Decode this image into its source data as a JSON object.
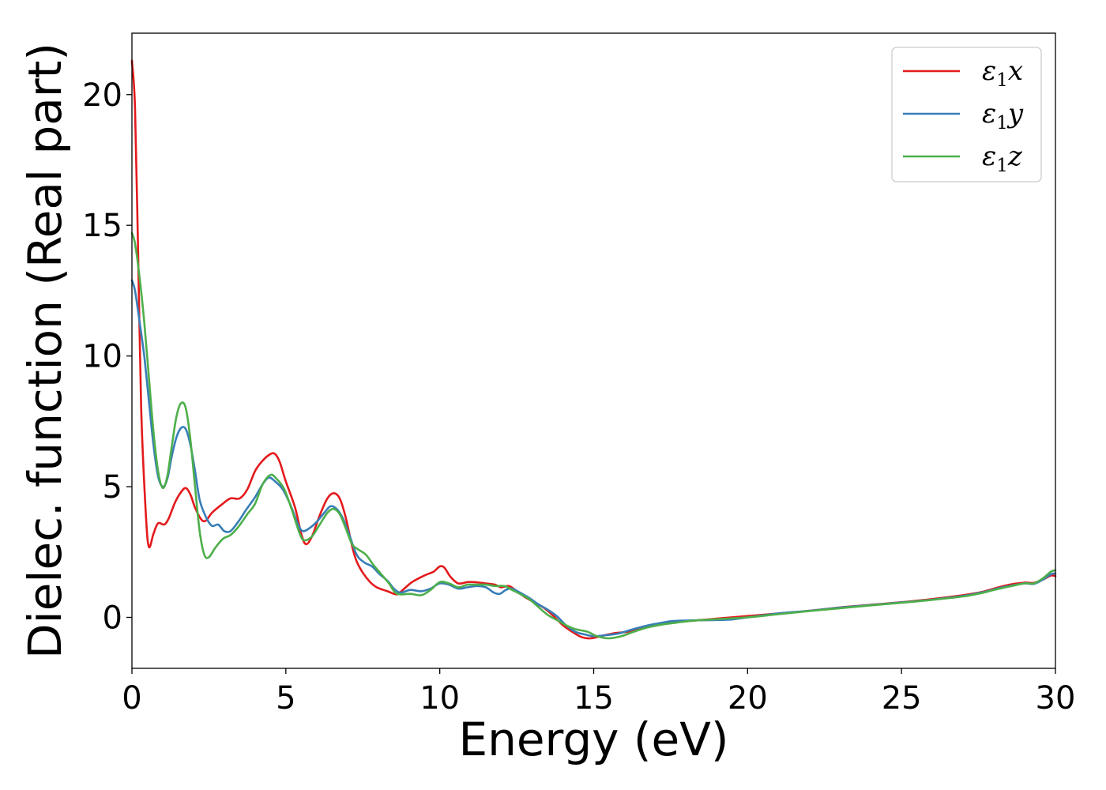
{
  "chart_data": {
    "type": "line",
    "title": "",
    "xlabel": "Energy (eV)",
    "ylabel": "Dielec. function (Real part)",
    "xlim": [
      0,
      30
    ],
    "ylim": [
      -1.95,
      22.35
    ],
    "xticks": [
      0,
      5,
      10,
      15,
      20,
      25,
      30
    ],
    "yticks": [
      0,
      5,
      10,
      15,
      20
    ],
    "xtick_labels": [
      "0",
      "5",
      "10",
      "15",
      "20",
      "25",
      "30"
    ],
    "ytick_labels": [
      "0",
      "5",
      "10",
      "15",
      "20"
    ],
    "grid": false,
    "legend_position": "top-right",
    "series": [
      {
        "name": "ε1x",
        "legend_label": {
          "sym": "ε",
          "sub": "1",
          "axis": "x"
        },
        "color": "#e41a1c",
        "points": [
          [
            0,
            21.3
          ],
          [
            0.1,
            19.5
          ],
          [
            0.2,
            14.0
          ],
          [
            0.3,
            8.0
          ],
          [
            0.45,
            4.0
          ],
          [
            0.55,
            2.7
          ],
          [
            0.7,
            3.2
          ],
          [
            0.85,
            3.6
          ],
          [
            1.05,
            3.55
          ],
          [
            1.2,
            3.8
          ],
          [
            1.4,
            4.4
          ],
          [
            1.6,
            4.8
          ],
          [
            1.75,
            4.95
          ],
          [
            1.9,
            4.7
          ],
          [
            2.05,
            4.2
          ],
          [
            2.25,
            3.75
          ],
          [
            2.4,
            3.7
          ],
          [
            2.6,
            4.0
          ],
          [
            2.9,
            4.3
          ],
          [
            3.2,
            4.55
          ],
          [
            3.5,
            4.55
          ],
          [
            3.75,
            4.9
          ],
          [
            4.0,
            5.6
          ],
          [
            4.25,
            6.0
          ],
          [
            4.5,
            6.25
          ],
          [
            4.65,
            6.25
          ],
          [
            4.8,
            5.95
          ],
          [
            5.0,
            5.2
          ],
          [
            5.3,
            4.2
          ],
          [
            5.5,
            3.2
          ],
          [
            5.65,
            2.8
          ],
          [
            5.85,
            3.1
          ],
          [
            6.1,
            3.9
          ],
          [
            6.35,
            4.55
          ],
          [
            6.55,
            4.75
          ],
          [
            6.75,
            4.55
          ],
          [
            6.95,
            3.8
          ],
          [
            7.2,
            2.5
          ],
          [
            7.4,
            1.9
          ],
          [
            7.7,
            1.4
          ],
          [
            7.95,
            1.15
          ],
          [
            8.3,
            1.0
          ],
          [
            8.6,
            0.88
          ],
          [
            8.8,
            1.05
          ],
          [
            9.1,
            1.35
          ],
          [
            9.5,
            1.6
          ],
          [
            9.8,
            1.75
          ],
          [
            10.0,
            1.95
          ],
          [
            10.15,
            1.9
          ],
          [
            10.35,
            1.55
          ],
          [
            10.6,
            1.3
          ],
          [
            10.9,
            1.35
          ],
          [
            11.1,
            1.35
          ],
          [
            11.5,
            1.3
          ],
          [
            11.8,
            1.25
          ],
          [
            12.0,
            1.15
          ],
          [
            12.25,
            1.2
          ],
          [
            12.5,
            1.0
          ],
          [
            12.8,
            0.75
          ],
          [
            13.1,
            0.55
          ],
          [
            13.4,
            0.35
          ],
          [
            13.7,
            0.05
          ],
          [
            14.0,
            -0.3
          ],
          [
            14.3,
            -0.55
          ],
          [
            14.6,
            -0.75
          ],
          [
            14.9,
            -0.8
          ],
          [
            15.3,
            -0.7
          ],
          [
            15.7,
            -0.6
          ],
          [
            16.1,
            -0.55
          ],
          [
            16.5,
            -0.42
          ],
          [
            17.0,
            -0.3
          ],
          [
            17.5,
            -0.2
          ],
          [
            18.0,
            -0.15
          ],
          [
            19.0,
            -0.05
          ],
          [
            20.0,
            0.05
          ],
          [
            21.0,
            0.15
          ],
          [
            22.0,
            0.25
          ],
          [
            23.0,
            0.38
          ],
          [
            24.0,
            0.48
          ],
          [
            25.0,
            0.58
          ],
          [
            26.0,
            0.7
          ],
          [
            27.0,
            0.85
          ],
          [
            27.6,
            0.97
          ],
          [
            28.0,
            1.1
          ],
          [
            28.5,
            1.25
          ],
          [
            29.0,
            1.33
          ],
          [
            29.3,
            1.32
          ],
          [
            29.6,
            1.45
          ],
          [
            29.85,
            1.6
          ],
          [
            30.0,
            1.58
          ]
        ]
      },
      {
        "name": "ε1y",
        "legend_label": {
          "sym": "ε",
          "sub": "1",
          "axis": "y"
        },
        "color": "#377eb8",
        "points": [
          [
            0,
            12.9
          ],
          [
            0.1,
            12.5
          ],
          [
            0.25,
            11.3
          ],
          [
            0.4,
            10.0
          ],
          [
            0.55,
            8.3
          ],
          [
            0.7,
            6.6
          ],
          [
            0.85,
            5.4
          ],
          [
            1.0,
            5.0
          ],
          [
            1.15,
            5.3
          ],
          [
            1.3,
            6.2
          ],
          [
            1.45,
            6.9
          ],
          [
            1.6,
            7.25
          ],
          [
            1.75,
            7.2
          ],
          [
            1.9,
            6.6
          ],
          [
            2.05,
            5.6
          ],
          [
            2.2,
            4.5
          ],
          [
            2.4,
            3.85
          ],
          [
            2.6,
            3.5
          ],
          [
            2.8,
            3.55
          ],
          [
            3.0,
            3.3
          ],
          [
            3.2,
            3.3
          ],
          [
            3.45,
            3.65
          ],
          [
            3.7,
            4.1
          ],
          [
            4.0,
            4.6
          ],
          [
            4.25,
            5.1
          ],
          [
            4.45,
            5.35
          ],
          [
            4.65,
            5.2
          ],
          [
            4.9,
            4.9
          ],
          [
            5.15,
            4.3
          ],
          [
            5.4,
            3.55
          ],
          [
            5.55,
            3.3
          ],
          [
            5.75,
            3.4
          ],
          [
            6.0,
            3.65
          ],
          [
            6.25,
            4.0
          ],
          [
            6.45,
            4.25
          ],
          [
            6.65,
            4.15
          ],
          [
            6.85,
            3.8
          ],
          [
            7.05,
            3.2
          ],
          [
            7.3,
            2.4
          ],
          [
            7.55,
            2.1
          ],
          [
            7.8,
            1.95
          ],
          [
            8.05,
            1.65
          ],
          [
            8.3,
            1.4
          ],
          [
            8.55,
            1.05
          ],
          [
            8.75,
            0.95
          ],
          [
            9.05,
            1.05
          ],
          [
            9.4,
            1.0
          ],
          [
            9.7,
            1.1
          ],
          [
            10.0,
            1.3
          ],
          [
            10.3,
            1.25
          ],
          [
            10.6,
            1.1
          ],
          [
            10.9,
            1.15
          ],
          [
            11.2,
            1.2
          ],
          [
            11.5,
            1.15
          ],
          [
            11.75,
            0.95
          ],
          [
            11.95,
            0.9
          ],
          [
            12.15,
            1.05
          ],
          [
            12.35,
            1.1
          ],
          [
            12.6,
            0.95
          ],
          [
            12.9,
            0.75
          ],
          [
            13.2,
            0.5
          ],
          [
            13.5,
            0.3
          ],
          [
            13.8,
            0.05
          ],
          [
            14.1,
            -0.3
          ],
          [
            14.4,
            -0.55
          ],
          [
            14.7,
            -0.65
          ],
          [
            15.0,
            -0.72
          ],
          [
            15.4,
            -0.68
          ],
          [
            15.8,
            -0.62
          ],
          [
            16.2,
            -0.48
          ],
          [
            16.6,
            -0.35
          ],
          [
            17.0,
            -0.25
          ],
          [
            17.5,
            -0.15
          ],
          [
            18.0,
            -0.12
          ],
          [
            19.0,
            -0.1
          ],
          [
            19.5,
            -0.08
          ],
          [
            20.0,
            0.0
          ],
          [
            21.0,
            0.15
          ],
          [
            22.0,
            0.25
          ],
          [
            23.0,
            0.37
          ],
          [
            24.0,
            0.47
          ],
          [
            25.0,
            0.57
          ],
          [
            26.0,
            0.68
          ],
          [
            27.0,
            0.82
          ],
          [
            27.6,
            0.95
          ],
          [
            28.0,
            1.07
          ],
          [
            28.5,
            1.2
          ],
          [
            29.0,
            1.3
          ],
          [
            29.3,
            1.28
          ],
          [
            29.6,
            1.45
          ],
          [
            29.85,
            1.65
          ],
          [
            30.0,
            1.68
          ]
        ]
      },
      {
        "name": "ε1z",
        "legend_label": {
          "sym": "ε",
          "sub": "1",
          "axis": "z"
        },
        "color": "#4daf4a",
        "points": [
          [
            0,
            14.7
          ],
          [
            0.1,
            14.3
          ],
          [
            0.25,
            13.0
          ],
          [
            0.4,
            11.3
          ],
          [
            0.55,
            9.2
          ],
          [
            0.7,
            7.1
          ],
          [
            0.85,
            5.6
          ],
          [
            1.0,
            4.95
          ],
          [
            1.15,
            5.4
          ],
          [
            1.3,
            6.6
          ],
          [
            1.45,
            7.7
          ],
          [
            1.6,
            8.2
          ],
          [
            1.75,
            8.0
          ],
          [
            1.9,
            6.8
          ],
          [
            2.05,
            5.0
          ],
          [
            2.2,
            3.3
          ],
          [
            2.35,
            2.4
          ],
          [
            2.5,
            2.3
          ],
          [
            2.7,
            2.65
          ],
          [
            2.95,
            3.0
          ],
          [
            3.2,
            3.15
          ],
          [
            3.45,
            3.45
          ],
          [
            3.75,
            3.95
          ],
          [
            4.0,
            4.35
          ],
          [
            4.25,
            5.1
          ],
          [
            4.5,
            5.45
          ],
          [
            4.7,
            5.3
          ],
          [
            4.95,
            4.9
          ],
          [
            5.2,
            4.1
          ],
          [
            5.45,
            3.2
          ],
          [
            5.6,
            2.95
          ],
          [
            5.85,
            3.1
          ],
          [
            6.1,
            3.55
          ],
          [
            6.35,
            4.0
          ],
          [
            6.55,
            4.15
          ],
          [
            6.75,
            3.95
          ],
          [
            6.95,
            3.4
          ],
          [
            7.15,
            2.8
          ],
          [
            7.35,
            2.6
          ],
          [
            7.6,
            2.4
          ],
          [
            7.85,
            2.0
          ],
          [
            8.1,
            1.65
          ],
          [
            8.35,
            1.3
          ],
          [
            8.55,
            0.95
          ],
          [
            8.75,
            0.88
          ],
          [
            9.05,
            0.9
          ],
          [
            9.4,
            0.85
          ],
          [
            9.7,
            1.05
          ],
          [
            10.0,
            1.35
          ],
          [
            10.3,
            1.3
          ],
          [
            10.6,
            1.15
          ],
          [
            10.9,
            1.25
          ],
          [
            11.2,
            1.25
          ],
          [
            11.5,
            1.25
          ],
          [
            11.8,
            1.2
          ],
          [
            12.1,
            1.2
          ],
          [
            12.35,
            1.05
          ],
          [
            12.6,
            0.9
          ],
          [
            12.9,
            0.7
          ],
          [
            13.2,
            0.4
          ],
          [
            13.5,
            0.1
          ],
          [
            13.8,
            -0.1
          ],
          [
            14.1,
            -0.3
          ],
          [
            14.4,
            -0.45
          ],
          [
            14.8,
            -0.55
          ],
          [
            15.1,
            -0.72
          ],
          [
            15.5,
            -0.8
          ],
          [
            15.9,
            -0.72
          ],
          [
            16.3,
            -0.55
          ],
          [
            16.7,
            -0.4
          ],
          [
            17.2,
            -0.28
          ],
          [
            17.7,
            -0.2
          ],
          [
            18.2,
            -0.13
          ],
          [
            19.0,
            -0.07
          ],
          [
            20.0,
            0.0
          ],
          [
            21.0,
            0.12
          ],
          [
            22.0,
            0.24
          ],
          [
            23.0,
            0.35
          ],
          [
            24.0,
            0.46
          ],
          [
            25.0,
            0.56
          ],
          [
            26.0,
            0.67
          ],
          [
            27.0,
            0.8
          ],
          [
            27.6,
            0.93
          ],
          [
            28.0,
            1.05
          ],
          [
            28.5,
            1.18
          ],
          [
            29.0,
            1.3
          ],
          [
            29.3,
            1.3
          ],
          [
            29.6,
            1.5
          ],
          [
            29.85,
            1.75
          ],
          [
            30.0,
            1.8
          ]
        ]
      }
    ]
  }
}
